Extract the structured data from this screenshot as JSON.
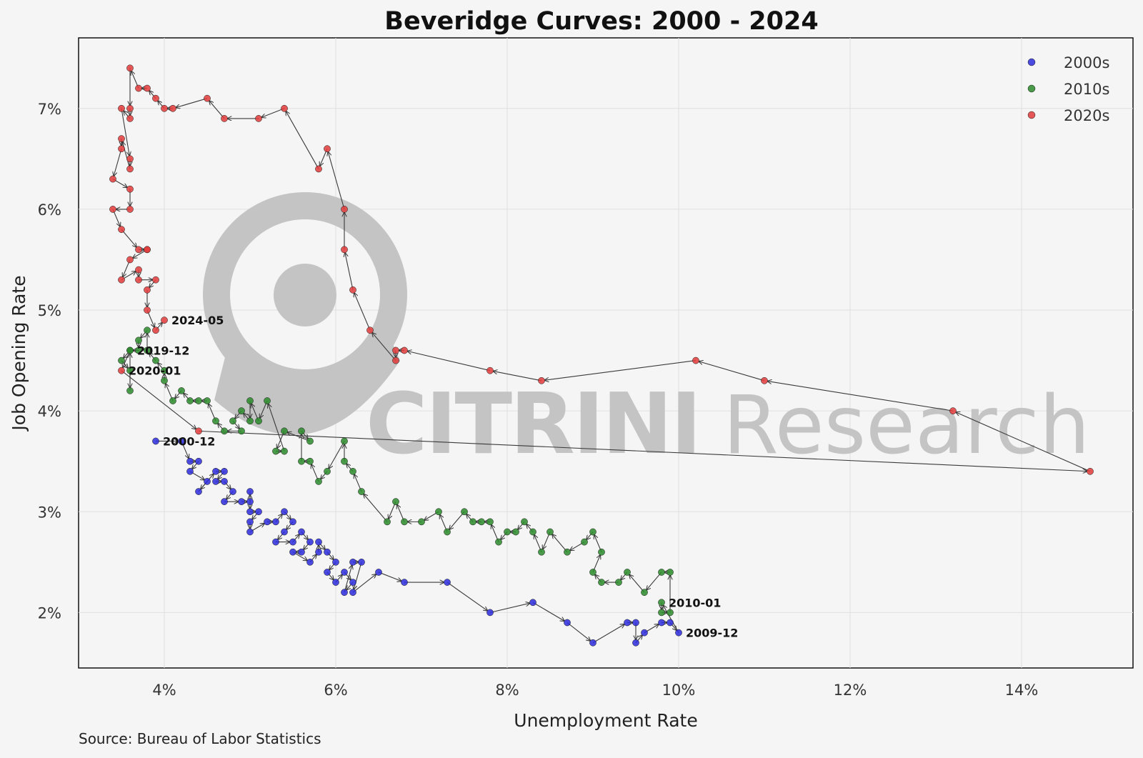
{
  "colors": {
    "2000s": "#2b2bdc",
    "2010s": "#2a8a2a",
    "2020s": "#e23b3b",
    "path": "#3a3a3a",
    "grid": "#e0e0e0",
    "background": "#f5f5f5",
    "watermark": "#c4c4c4"
  },
  "watermark": {
    "bold_part": "CITRINI",
    "light_part": "Research"
  },
  "source": "Source: Bureau of Labor Statistics",
  "chart_data": {
    "type": "scatter",
    "title": "Beveridge Curves: 2000 - 2024",
    "xlabel": "Unemployment Rate",
    "ylabel": "Job Opening Rate",
    "xlim": [
      3.0,
      15.3
    ],
    "ylim": [
      1.45,
      7.7
    ],
    "x_ticks": [
      4,
      6,
      8,
      10,
      12,
      14
    ],
    "x_tick_labels": [
      "4%",
      "6%",
      "8%",
      "10%",
      "12%",
      "14%"
    ],
    "y_ticks": [
      2,
      3,
      4,
      5,
      6,
      7
    ],
    "y_tick_labels": [
      "2%",
      "3%",
      "4%",
      "5%",
      "6%",
      "7%"
    ],
    "grid": true,
    "legend_position": "top-right",
    "connected_path": true,
    "series": [
      {
        "name": "2000s",
        "color_key": "2000s",
        "points": [
          [
            3.9,
            3.7
          ],
          [
            4.2,
            3.7
          ],
          [
            4.3,
            3.5
          ],
          [
            4.4,
            3.5
          ],
          [
            4.3,
            3.4
          ],
          [
            4.5,
            3.3
          ],
          [
            4.4,
            3.2
          ],
          [
            4.6,
            3.4
          ],
          [
            4.7,
            3.4
          ],
          [
            4.6,
            3.3
          ],
          [
            4.7,
            3.3
          ],
          [
            4.8,
            3.2
          ],
          [
            4.7,
            3.1
          ],
          [
            4.9,
            3.1
          ],
          [
            5.0,
            3.1
          ],
          [
            5.0,
            3.2
          ],
          [
            5.0,
            3.0
          ],
          [
            5.1,
            3.0
          ],
          [
            5.0,
            2.9
          ],
          [
            5.0,
            2.8
          ],
          [
            5.2,
            2.9
          ],
          [
            5.3,
            2.9
          ],
          [
            5.4,
            3.0
          ],
          [
            5.5,
            2.9
          ],
          [
            5.4,
            2.8
          ],
          [
            5.3,
            2.7
          ],
          [
            5.5,
            2.7
          ],
          [
            5.6,
            2.8
          ],
          [
            5.7,
            2.7
          ],
          [
            5.6,
            2.6
          ],
          [
            5.5,
            2.6
          ],
          [
            5.7,
            2.5
          ],
          [
            5.8,
            2.6
          ],
          [
            5.8,
            2.7
          ],
          [
            5.9,
            2.6
          ],
          [
            6.0,
            2.5
          ],
          [
            5.9,
            2.4
          ],
          [
            6.0,
            2.3
          ],
          [
            6.1,
            2.4
          ],
          [
            6.2,
            2.3
          ],
          [
            6.1,
            2.2
          ],
          [
            6.2,
            2.5
          ],
          [
            6.3,
            2.5
          ],
          [
            6.2,
            2.2
          ],
          [
            6.5,
            2.4
          ],
          [
            6.8,
            2.3
          ],
          [
            7.3,
            2.3
          ],
          [
            7.8,
            2.0
          ],
          [
            8.3,
            2.1
          ],
          [
            8.7,
            1.9
          ],
          [
            9.0,
            1.7
          ],
          [
            9.4,
            1.9
          ],
          [
            9.5,
            1.9
          ],
          [
            9.5,
            1.7
          ],
          [
            9.6,
            1.8
          ],
          [
            9.8,
            1.9
          ],
          [
            9.9,
            1.9
          ],
          [
            10.0,
            1.8
          ]
        ]
      },
      {
        "name": "2010s",
        "color_key": "2010s",
        "points": [
          [
            9.8,
            2.1
          ],
          [
            9.8,
            2.0
          ],
          [
            9.9,
            2.0
          ],
          [
            9.9,
            2.4
          ],
          [
            9.8,
            2.4
          ],
          [
            9.6,
            2.2
          ],
          [
            9.4,
            2.4
          ],
          [
            9.3,
            2.3
          ],
          [
            9.1,
            2.3
          ],
          [
            9.0,
            2.4
          ],
          [
            9.1,
            2.6
          ],
          [
            9.0,
            2.8
          ],
          [
            8.9,
            2.7
          ],
          [
            8.7,
            2.6
          ],
          [
            8.5,
            2.8
          ],
          [
            8.4,
            2.6
          ],
          [
            8.3,
            2.8
          ],
          [
            8.2,
            2.9
          ],
          [
            8.1,
            2.8
          ],
          [
            8.0,
            2.8
          ],
          [
            7.9,
            2.7
          ],
          [
            7.8,
            2.9
          ],
          [
            7.7,
            2.9
          ],
          [
            7.6,
            2.9
          ],
          [
            7.5,
            3.0
          ],
          [
            7.3,
            2.8
          ],
          [
            7.2,
            3.0
          ],
          [
            7.0,
            2.9
          ],
          [
            6.8,
            2.9
          ],
          [
            6.7,
            3.1
          ],
          [
            6.6,
            2.9
          ],
          [
            6.3,
            3.2
          ],
          [
            6.2,
            3.4
          ],
          [
            6.1,
            3.5
          ],
          [
            6.1,
            3.7
          ],
          [
            5.9,
            3.4
          ],
          [
            5.8,
            3.3
          ],
          [
            5.7,
            3.5
          ],
          [
            5.6,
            3.5
          ],
          [
            5.6,
            3.8
          ],
          [
            5.7,
            3.7
          ],
          [
            5.4,
            3.8
          ],
          [
            5.3,
            3.6
          ],
          [
            5.4,
            3.6
          ],
          [
            5.2,
            4.1
          ],
          [
            5.1,
            3.9
          ],
          [
            5.0,
            4.1
          ],
          [
            5.0,
            3.9
          ],
          [
            4.9,
            4.0
          ],
          [
            4.8,
            3.9
          ],
          [
            4.9,
            3.8
          ],
          [
            4.7,
            3.8
          ],
          [
            4.6,
            3.9
          ],
          [
            4.5,
            4.1
          ],
          [
            4.4,
            4.1
          ],
          [
            4.3,
            4.1
          ],
          [
            4.2,
            4.2
          ],
          [
            4.1,
            4.1
          ],
          [
            4.0,
            4.3
          ],
          [
            4.0,
            4.4
          ],
          [
            3.9,
            4.5
          ],
          [
            3.8,
            4.6
          ],
          [
            3.8,
            4.8
          ],
          [
            3.7,
            4.7
          ],
          [
            3.7,
            4.6
          ],
          [
            3.6,
            4.6
          ],
          [
            3.5,
            4.5
          ],
          [
            3.6,
            4.4
          ],
          [
            3.6,
            4.2
          ],
          [
            3.6,
            4.6
          ]
        ]
      },
      {
        "name": "2020s",
        "color_key": "2020s",
        "points": [
          [
            3.5,
            4.4
          ],
          [
            4.4,
            3.8
          ],
          [
            14.8,
            3.4
          ],
          [
            13.2,
            4.0
          ],
          [
            11.0,
            4.3
          ],
          [
            10.2,
            4.5
          ],
          [
            8.4,
            4.3
          ],
          [
            7.8,
            4.4
          ],
          [
            6.8,
            4.6
          ],
          [
            6.7,
            4.6
          ],
          [
            6.7,
            4.5
          ],
          [
            6.4,
            4.8
          ],
          [
            6.2,
            5.2
          ],
          [
            6.1,
            5.6
          ],
          [
            6.1,
            6.0
          ],
          [
            5.9,
            6.6
          ],
          [
            5.8,
            6.4
          ],
          [
            5.4,
            7.0
          ],
          [
            5.1,
            6.9
          ],
          [
            4.7,
            6.9
          ],
          [
            4.5,
            7.1
          ],
          [
            4.1,
            7.0
          ],
          [
            4.0,
            7.0
          ],
          [
            3.9,
            7.1
          ],
          [
            3.8,
            7.2
          ],
          [
            3.7,
            7.2
          ],
          [
            3.6,
            7.4
          ],
          [
            3.6,
            7.0
          ],
          [
            3.6,
            6.9
          ],
          [
            3.5,
            7.0
          ],
          [
            3.6,
            6.5
          ],
          [
            3.6,
            6.4
          ],
          [
            3.5,
            6.7
          ],
          [
            3.5,
            6.6
          ],
          [
            3.4,
            6.3
          ],
          [
            3.6,
            6.2
          ],
          [
            3.6,
            6.0
          ],
          [
            3.4,
            6.0
          ],
          [
            3.5,
            5.8
          ],
          [
            3.7,
            5.6
          ],
          [
            3.8,
            5.6
          ],
          [
            3.8,
            5.6
          ],
          [
            3.6,
            5.5
          ],
          [
            3.5,
            5.3
          ],
          [
            3.7,
            5.4
          ],
          [
            3.7,
            5.3
          ],
          [
            3.9,
            5.3
          ],
          [
            3.8,
            5.2
          ],
          [
            3.8,
            5.0
          ],
          [
            3.9,
            4.8
          ],
          [
            4.0,
            4.9
          ]
        ]
      }
    ],
    "annotations": [
      {
        "text": "2024-05",
        "x": 4.0,
        "y": 4.9
      },
      {
        "text": "2020-01",
        "x": 3.5,
        "y": 4.4
      },
      {
        "text": "2019-12",
        "x": 3.6,
        "y": 4.6
      },
      {
        "text": "2000-12",
        "x": 3.9,
        "y": 3.7
      },
      {
        "text": "2010-01",
        "x": 9.8,
        "y": 2.1
      },
      {
        "text": "2009-12",
        "x": 10.0,
        "y": 1.8
      }
    ]
  }
}
